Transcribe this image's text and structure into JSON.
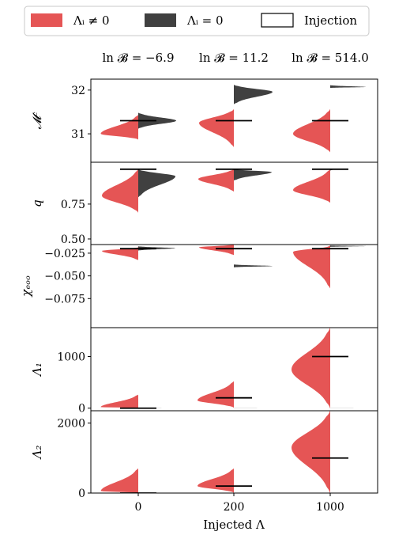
{
  "chart_data": {
    "type": "violin",
    "xlabel": "Injected Λ",
    "x_categories": [
      "0",
      "200",
      "1000"
    ],
    "legend": [
      {
        "label": "Λᵢ ≠ 0",
        "color": "#e55555",
        "style": "fill"
      },
      {
        "label": "Λᵢ = 0",
        "color": "#404040",
        "style": "fill"
      },
      {
        "label": "Injection",
        "color": "#000000",
        "style": "outline"
      }
    ],
    "bayes_factors": [
      "ln 𝓑 = −6.9",
      "ln 𝓑 = 11.2",
      "ln 𝓑 = 514.0"
    ],
    "colors": {
      "nonzero": "#e55555",
      "zero": "#404040",
      "injection": "#000000"
    },
    "panels": [
      {
        "id": "Mc",
        "ylabel": "𝓜ᶜ",
        "ylim": [
          30.35,
          32.25
        ],
        "yticks": [
          31,
          32
        ],
        "ytick_labels": [
          "31",
          "32"
        ],
        "injection": [
          31.3,
          31.3,
          31.3
        ],
        "nonzero": [
          {
            "min": 30.87,
            "max": 31.43,
            "mode": 31.0,
            "width": 0.95
          },
          {
            "min": 30.7,
            "max": 31.56,
            "mode": 31.25,
            "width": 0.88
          },
          {
            "min": 30.58,
            "max": 31.56,
            "mode": 31.0,
            "width": 0.94
          }
        ],
        "zero": [
          {
            "min": 31.12,
            "max": 31.48,
            "mode": 31.3,
            "width": 0.96
          },
          {
            "min": 31.68,
            "max": 32.12,
            "mode": 31.96,
            "width": 0.98
          },
          {
            "min": 32.05,
            "max": 32.11,
            "mode": 32.07,
            "width": 0.9
          }
        ]
      },
      {
        "id": "q",
        "ylabel": "q",
        "ylim": [
          0.46,
          1.05
        ],
        "yticks": [
          0.5,
          0.75
        ],
        "ytick_labels": [
          "0.50",
          "0.75"
        ],
        "injection": [
          1.0,
          1.0,
          1.0
        ],
        "nonzero": [
          {
            "min": 0.69,
            "max": 1.0,
            "mode": 0.81,
            "width": 0.92
          },
          {
            "min": 0.84,
            "max": 1.0,
            "mode": 0.93,
            "width": 0.9
          },
          {
            "min": 0.76,
            "max": 1.0,
            "mode": 0.85,
            "width": 0.94
          }
        ],
        "zero": [
          {
            "min": 0.8,
            "max": 1.0,
            "mode": 0.95,
            "width": 0.94
          },
          {
            "min": 0.92,
            "max": 1.0,
            "mode": 0.98,
            "width": 0.96
          },
          {
            "min": 0.99,
            "max": 1.0,
            "mode": 1.0,
            "width": 0.1
          }
        ]
      },
      {
        "id": "chi_eff",
        "ylabel": "χₑₒₒ",
        "ylim": [
          -0.107,
          -0.0155
        ],
        "yticks": [
          -0.025,
          -0.05,
          -0.075
        ],
        "ytick_labels": [
          "−0.025",
          "−0.050",
          "−0.075"
        ],
        "injection": [
          -0.02,
          -0.02,
          -0.02
        ],
        "nonzero": [
          {
            "min": -0.0325,
            "max": -0.0185,
            "mode": -0.0225,
            "width": 0.92
          },
          {
            "min": -0.027,
            "max": -0.0155,
            "mode": -0.0185,
            "width": 0.88
          },
          {
            "min": -0.0635,
            "max": -0.0165,
            "mode": -0.0235,
            "width": 0.94
          }
        ],
        "zero": [
          {
            "min": -0.022,
            "max": -0.0175,
            "mode": -0.0195,
            "width": 0.94
          },
          {
            "min": -0.0405,
            "max": -0.0375,
            "mode": -0.0392,
            "width": 0.98
          },
          {
            "min": -0.018,
            "max": -0.0165,
            "mode": -0.0172,
            "width": 0.9
          }
        ]
      },
      {
        "id": "Lambda1",
        "ylabel": "Λ₁",
        "ylim": [
          -50,
          1560
        ],
        "yticks": [
          0,
          1000
        ],
        "ytick_labels": [
          "0",
          "1000"
        ],
        "injection": [
          0,
          200,
          1000
        ],
        "nonzero": [
          {
            "min": 0,
            "max": 260,
            "mode": 20,
            "width": 0.95
          },
          {
            "min": 10,
            "max": 520,
            "mode": 150,
            "width": 0.92
          },
          {
            "min": 0,
            "max": 1560,
            "mode": 750,
            "width": 0.98
          }
        ],
        "zero": [
          {
            "min": 0,
            "max": 2,
            "mode": 0,
            "width": 0.97
          },
          {
            "min": 0,
            "max": 2,
            "mode": 0,
            "width": 0.97
          },
          {
            "min": 0,
            "max": 2,
            "mode": 0,
            "width": 0.97
          }
        ]
      },
      {
        "id": "Lambda2",
        "ylabel": "Λ₂",
        "ylim": [
          0,
          2350
        ],
        "yticks": [
          0,
          2000
        ],
        "ytick_labels": [
          "0",
          "2000"
        ],
        "injection": [
          0,
          200,
          1000
        ],
        "nonzero": [
          {
            "min": 0,
            "max": 700,
            "mode": 50,
            "width": 0.95
          },
          {
            "min": 10,
            "max": 700,
            "mode": 200,
            "width": 0.92
          },
          {
            "min": 0,
            "max": 2350,
            "mode": 1300,
            "width": 0.98
          }
        ]
      }
    ]
  }
}
